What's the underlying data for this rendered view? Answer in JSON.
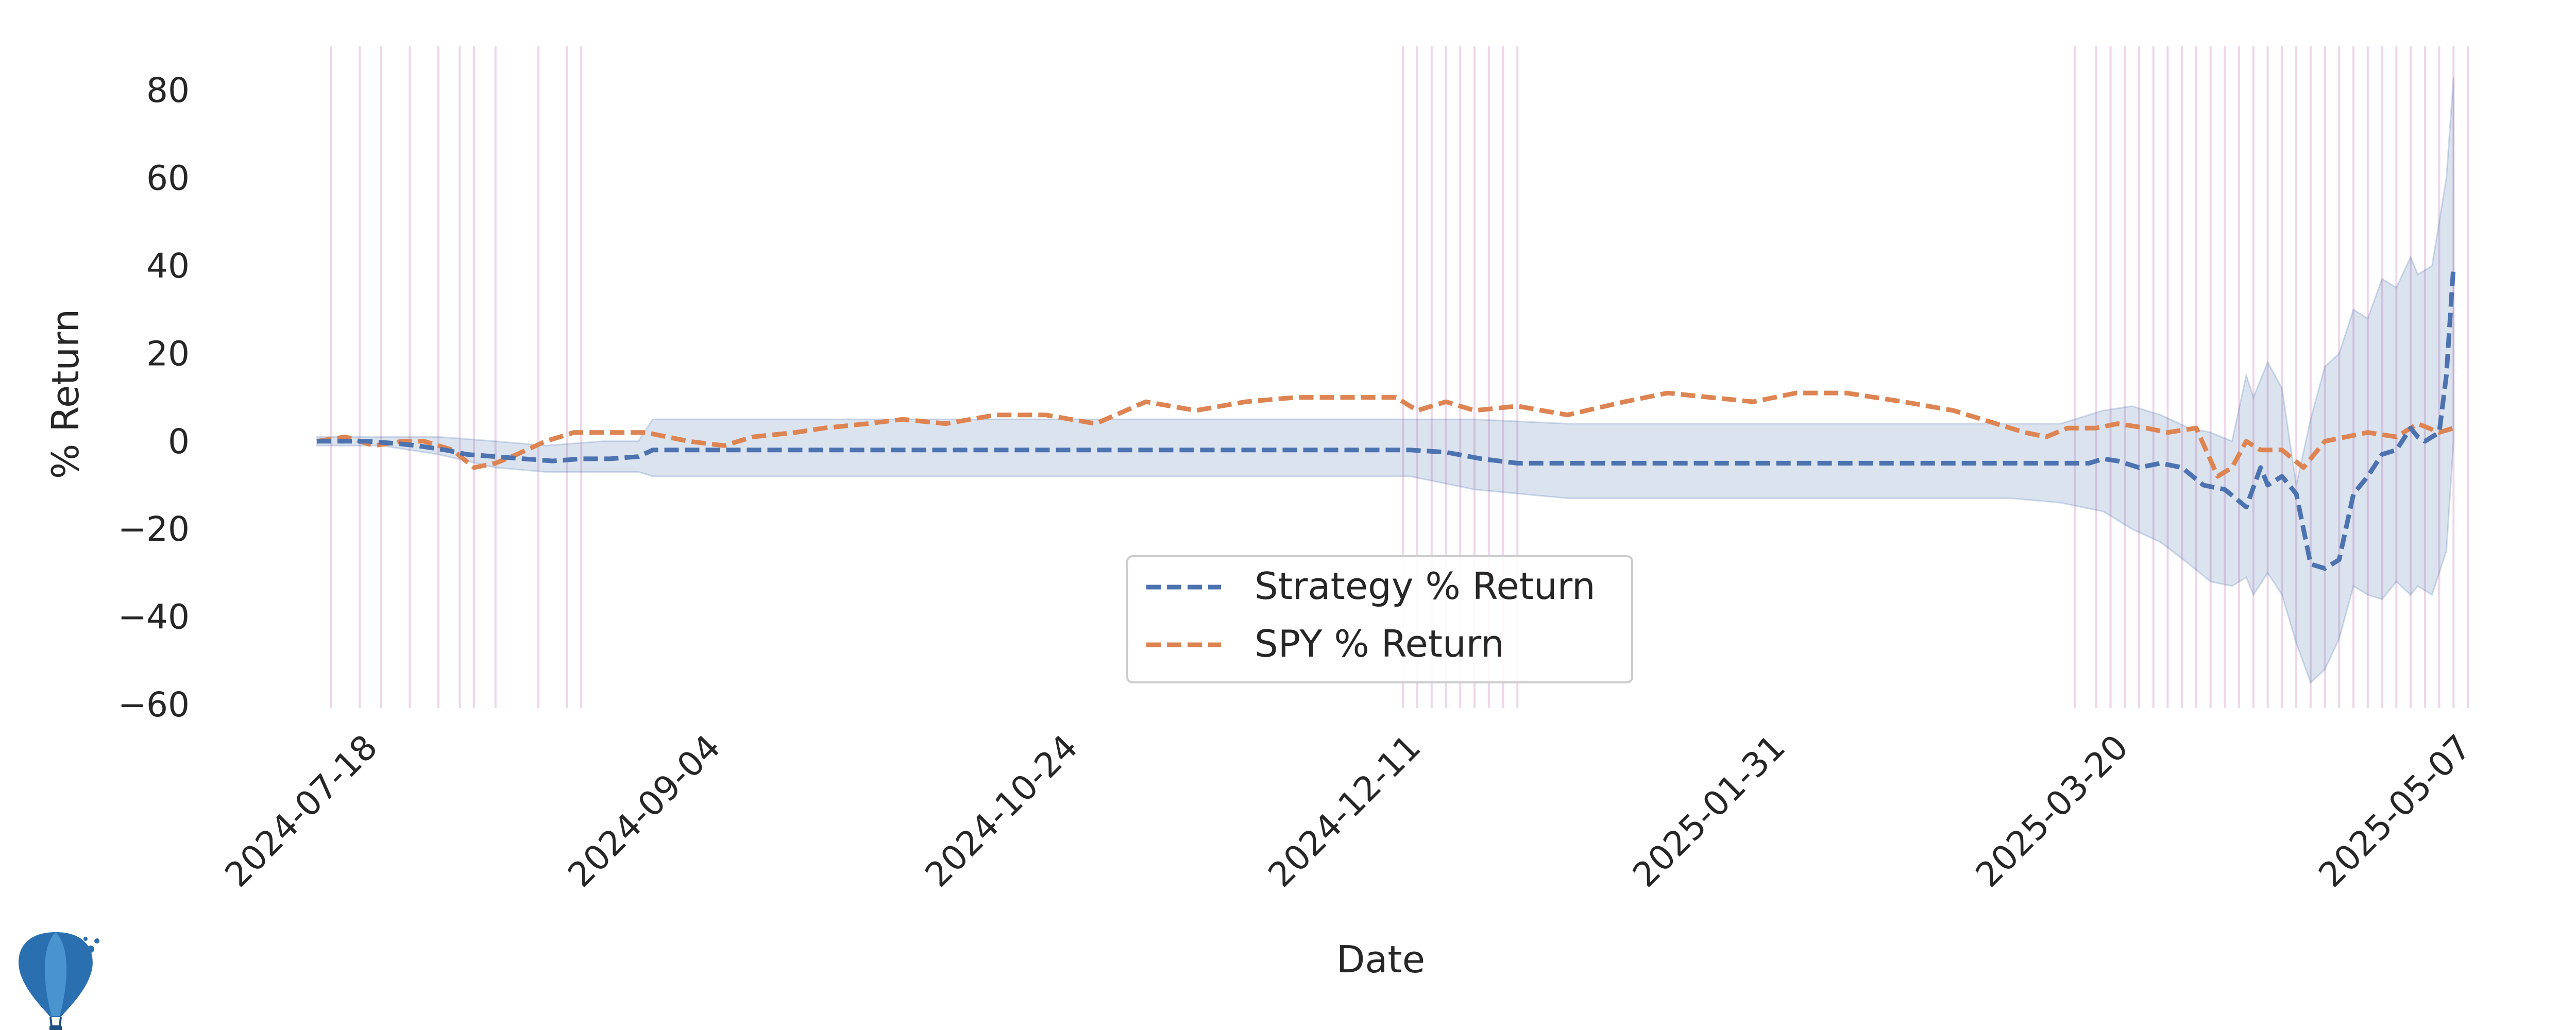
{
  "chart_data": {
    "type": "line",
    "xlabel": "Date",
    "ylabel": "% Return",
    "x_range": [
      "2024-07-11",
      "2025-05-08"
    ],
    "ylim": [
      -62,
      90
    ],
    "x_ticks": [
      "2024-07-18",
      "2024-09-04",
      "2024-10-24",
      "2024-12-11",
      "2025-01-31",
      "2025-03-20",
      "2025-05-07"
    ],
    "y_ticks": [
      80,
      60,
      40,
      20,
      0,
      -20,
      -40,
      -60
    ],
    "y_tick_labels": [
      "80",
      "60",
      "40",
      "20",
      "0",
      "−20",
      "−40",
      "−60"
    ],
    "grid": false,
    "legend_position": "lower-center",
    "series": [
      {
        "name": "Strategy % Return",
        "color": "#4c72b0",
        "line_style": "dashed",
        "x": [
          "2024-07-11",
          "2024-07-15",
          "2024-07-18",
          "2024-07-22",
          "2024-07-25",
          "2024-07-29",
          "2024-08-01",
          "2024-08-05",
          "2024-08-09",
          "2024-08-13",
          "2024-08-17",
          "2024-08-21",
          "2024-08-25",
          "2024-08-27",
          "2024-09-04",
          "2024-10-01",
          "2024-11-01",
          "2024-12-01",
          "2024-12-11",
          "2024-12-16",
          "2024-12-21",
          "2024-12-26",
          "2025-01-02",
          "2025-01-15",
          "2025-02-01",
          "2025-02-20",
          "2025-03-05",
          "2025-03-12",
          "2025-03-16",
          "2025-03-18",
          "2025-03-20",
          "2025-03-23",
          "2025-03-26",
          "2025-03-29",
          "2025-04-01",
          "2025-04-04",
          "2025-04-07",
          "2025-04-09",
          "2025-04-10",
          "2025-04-12",
          "2025-04-14",
          "2025-04-16",
          "2025-04-18",
          "2025-04-20",
          "2025-04-22",
          "2025-04-24",
          "2025-04-26",
          "2025-04-28",
          "2025-04-30",
          "2025-05-01",
          "2025-05-02",
          "2025-05-04",
          "2025-05-05",
          "2025-05-06"
        ],
        "values": [
          0,
          0,
          0,
          -0.5,
          -1,
          -2,
          -3,
          -3.5,
          -4,
          -4.5,
          -4,
          -4,
          -3.5,
          -2,
          -2,
          -2,
          -2,
          -2,
          -2,
          -2.5,
          -4,
          -5,
          -5,
          -5,
          -5,
          -5,
          -5,
          -5,
          -5,
          -4,
          -4.5,
          -6,
          -5,
          -6,
          -10,
          -11,
          -15,
          -6,
          -10,
          -8,
          -12,
          -28,
          -29,
          -27,
          -12,
          -8,
          -3,
          -2,
          3,
          1,
          0,
          2,
          15,
          40
        ]
      },
      {
        "name": "SPY % Return",
        "color": "#dd8452",
        "line_style": "dashed",
        "x": [
          "2024-07-11",
          "2024-07-15",
          "2024-07-17",
          "2024-07-19",
          "2024-07-23",
          "2024-07-26",
          "2024-07-30",
          "2024-08-02",
          "2024-08-05",
          "2024-08-08",
          "2024-08-12",
          "2024-08-16",
          "2024-08-20",
          "2024-08-26",
          "2024-09-01",
          "2024-09-06",
          "2024-09-10",
          "2024-09-16",
          "2024-09-20",
          "2024-09-26",
          "2024-10-01",
          "2024-10-07",
          "2024-10-14",
          "2024-10-21",
          "2024-10-28",
          "2024-11-04",
          "2024-11-11",
          "2024-11-18",
          "2024-11-25",
          "2024-12-02",
          "2024-12-09",
          "2024-12-12",
          "2024-12-16",
          "2024-12-20",
          "2024-12-26",
          "2025-01-02",
          "2025-01-10",
          "2025-01-16",
          "2025-01-22",
          "2025-01-28",
          "2025-02-03",
          "2025-02-10",
          "2025-02-18",
          "2025-02-25",
          "2025-03-03",
          "2025-03-07",
          "2025-03-10",
          "2025-03-13",
          "2025-03-17",
          "2025-03-20",
          "2025-03-24",
          "2025-03-27",
          "2025-03-31",
          "2025-04-03",
          "2025-04-05",
          "2025-04-07",
          "2025-04-09",
          "2025-04-12",
          "2025-04-15",
          "2025-04-18",
          "2025-04-21",
          "2025-04-24",
          "2025-04-28",
          "2025-05-01",
          "2025-05-04",
          "2025-05-06"
        ],
        "values": [
          0,
          1,
          0,
          -1,
          0,
          0,
          -2,
          -6,
          -5,
          -3,
          0,
          2,
          2,
          2,
          0,
          -1,
          1,
          2,
          3,
          4,
          5,
          4,
          6,
          6,
          4,
          9,
          7,
          9,
          10,
          10,
          10,
          7,
          9,
          7,
          8,
          6,
          9,
          11,
          10,
          9,
          11,
          11,
          9,
          7,
          4,
          2,
          1,
          3,
          3,
          4,
          3,
          2,
          3,
          -8,
          -6,
          0,
          -2,
          -2,
          -6,
          0,
          1,
          2,
          1,
          4,
          2,
          3
        ]
      }
    ],
    "band": {
      "color": "#4c72b0",
      "x": [
        "2024-07-11",
        "2024-07-20",
        "2024-07-28",
        "2024-08-05",
        "2024-08-12",
        "2024-08-20",
        "2024-08-25",
        "2024-08-27",
        "2024-09-04",
        "2024-11-01",
        "2024-12-11",
        "2024-12-20",
        "2025-01-02",
        "2025-02-01",
        "2025-03-05",
        "2025-03-12",
        "2025-03-18",
        "2025-03-22",
        "2025-03-26",
        "2025-03-30",
        "2025-04-02",
        "2025-04-05",
        "2025-04-07",
        "2025-04-08",
        "2025-04-10",
        "2025-04-12",
        "2025-04-14",
        "2025-04-16",
        "2025-04-18",
        "2025-04-20",
        "2025-04-22",
        "2025-04-24",
        "2025-04-26",
        "2025-04-28",
        "2025-04-30",
        "2025-05-01",
        "2025-05-03",
        "2025-05-05",
        "2025-05-06"
      ],
      "upper": [
        1,
        1,
        1,
        0,
        -1,
        0,
        0,
        5,
        5,
        5,
        5,
        5,
        4,
        4,
        4,
        4,
        7,
        8,
        6,
        3,
        2,
        0,
        15,
        10,
        18,
        12,
        -10,
        5,
        17,
        20,
        30,
        28,
        37,
        35,
        42,
        38,
        40,
        60,
        83
      ],
      "lower": [
        -1,
        -1,
        -3,
        -6,
        -7,
        -7,
        -7,
        -8,
        -8,
        -8,
        -8,
        -11,
        -13,
        -13,
        -13,
        -14,
        -16,
        -20,
        -23,
        -28,
        -32,
        -33,
        -31,
        -35,
        -30,
        -35,
        -46,
        -55,
        -52,
        -45,
        -33,
        -35,
        -36,
        -32,
        -35,
        -33,
        -35,
        -25,
        0
      ]
    },
    "event_dates": [
      "2024-07-13",
      "2024-07-17",
      "2024-07-20",
      "2024-07-24",
      "2024-07-28",
      "2024-07-31",
      "2024-08-02",
      "2024-08-05",
      "2024-08-11",
      "2024-08-15",
      "2024-08-17",
      "2024-12-10",
      "2024-12-12",
      "2024-12-14",
      "2024-12-16",
      "2024-12-18",
      "2024-12-20",
      "2024-12-22",
      "2024-12-24",
      "2024-12-26",
      "2025-03-14",
      "2025-03-17",
      "2025-03-19",
      "2025-03-21",
      "2025-03-23",
      "2025-03-25",
      "2025-03-27",
      "2025-03-29",
      "2025-03-31",
      "2025-04-02",
      "2025-04-04",
      "2025-04-06",
      "2025-04-08",
      "2025-04-10",
      "2025-04-12",
      "2025-04-14",
      "2025-04-16",
      "2025-04-18",
      "2025-04-20",
      "2025-04-22",
      "2025-04-24",
      "2025-04-26",
      "2025-04-28",
      "2025-04-30",
      "2025-05-02",
      "2025-05-04",
      "2025-05-06",
      "2025-05-08"
    ]
  },
  "logo": {
    "icon": "hot-air-balloon-icon",
    "color": "#2a6fb0"
  }
}
